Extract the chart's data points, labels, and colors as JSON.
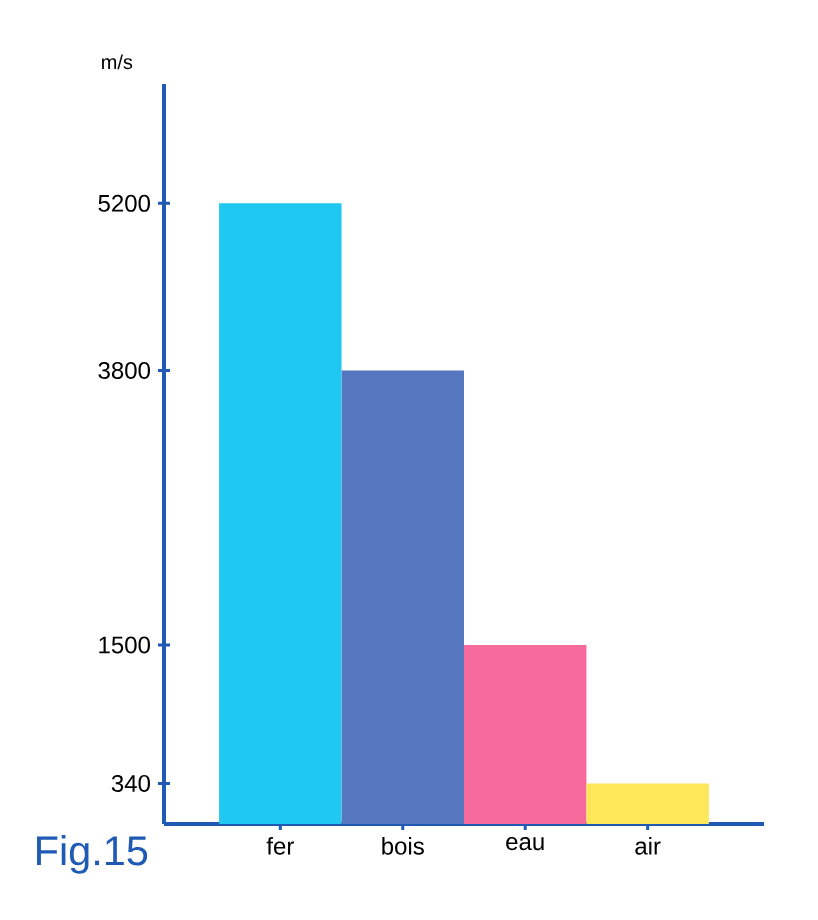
{
  "chart_data": {
    "type": "bar",
    "ylabel": "m/s",
    "annotations": [
      "Fig.15"
    ],
    "categories": [
      "fer",
      "bois",
      "eau",
      "air"
    ],
    "values": [
      5200,
      3800,
      1500,
      340
    ],
    "colors": [
      "#1ec8f0",
      "#5577c0",
      "#f76a9c",
      "#fde85a"
    ],
    "ylim": [
      0,
      6200
    ],
    "yticks": [
      340,
      1500,
      3800,
      5200
    ]
  }
}
